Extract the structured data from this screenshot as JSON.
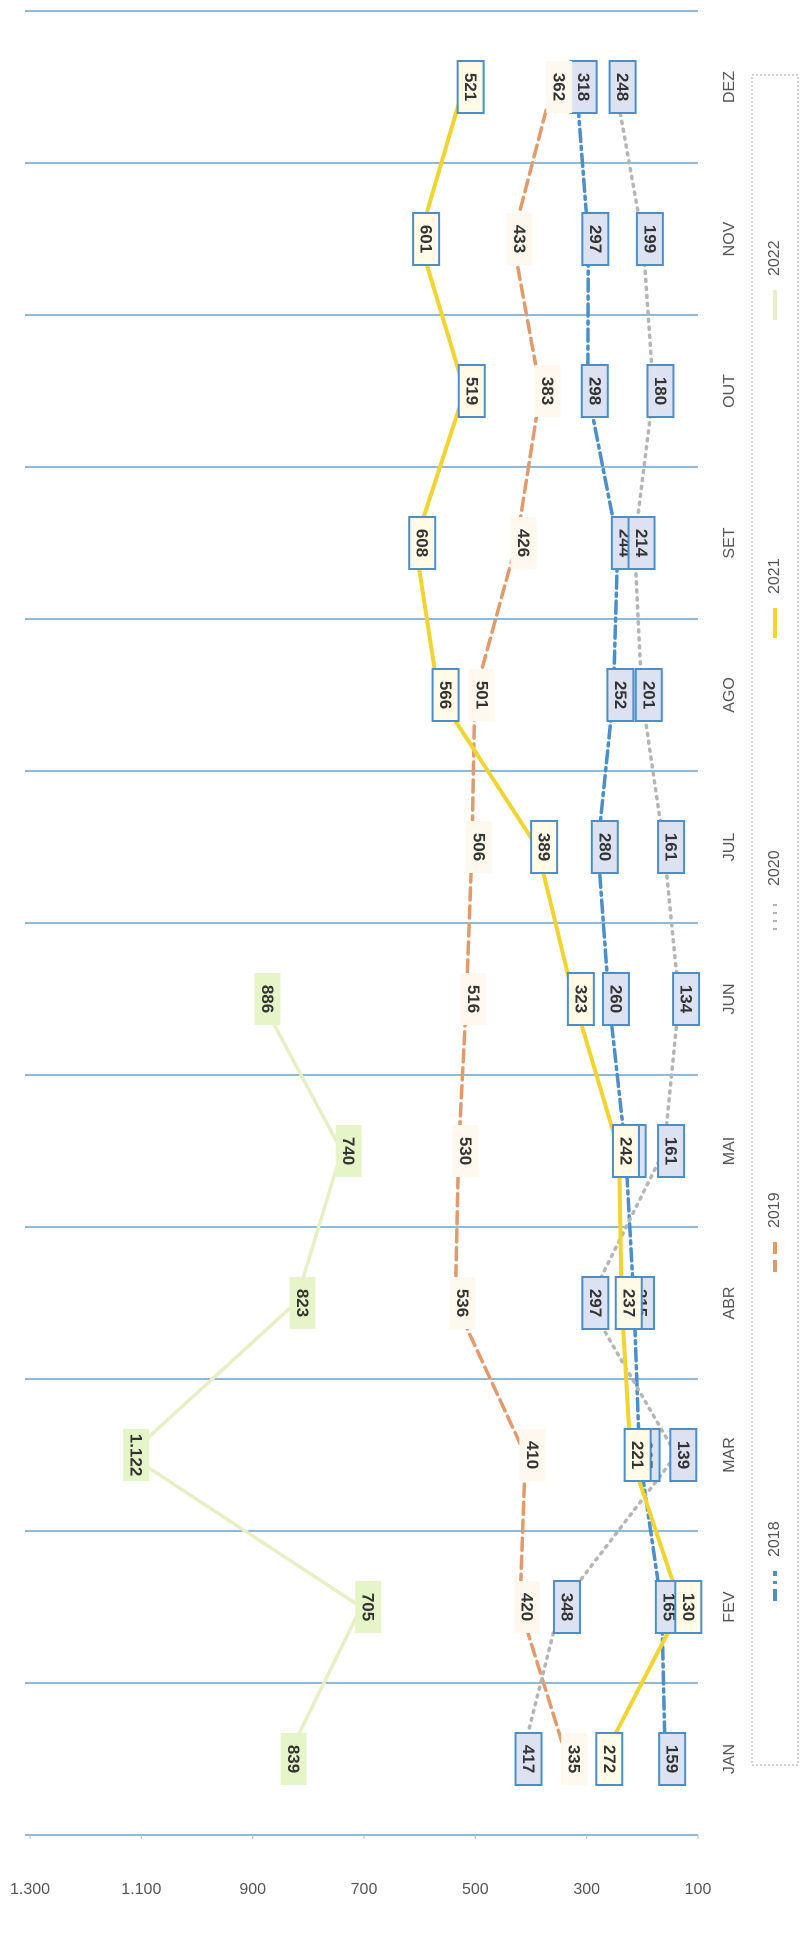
{
  "chart_data": {
    "type": "line",
    "categories": [
      "JAN",
      "FEV",
      "MAR",
      "ABR",
      "MAI",
      "JUN",
      "JUL",
      "AGO",
      "SET",
      "OUT",
      "NOV",
      "DEZ"
    ],
    "series": [
      {
        "name": "2018",
        "color": "#4a8fc9",
        "dash": "12 5 3 5",
        "values": [
          159,
          165,
          205,
          215,
          230,
          260,
          280,
          252,
          244,
          298,
          297,
          318
        ]
      },
      {
        "name": "2019",
        "color": "#e39a6a",
        "dash": "12 6",
        "values": [
          335,
          420,
          410,
          536,
          530,
          516,
          506,
          501,
          426,
          383,
          433,
          362
        ]
      },
      {
        "name": "2020",
        "color": "#b5b5b5",
        "dash": "2 6",
        "values": [
          417,
          348,
          139,
          297,
          161,
          134,
          161,
          201,
          214,
          180,
          199,
          248
        ]
      },
      {
        "name": "2021",
        "color": "#f2d431",
        "dash": "",
        "values": [
          272,
          130,
          221,
          237,
          242,
          323,
          389,
          566,
          608,
          519,
          601,
          521
        ]
      },
      {
        "name": "2022",
        "color": "#e6f0c4",
        "dash": "",
        "values": [
          839,
          705,
          1122,
          823,
          740,
          886,
          null,
          null,
          null,
          null,
          null,
          null
        ],
        "value_labels": [
          "839",
          "705",
          "1.122",
          "823",
          "740",
          "886",
          null,
          null,
          null,
          null,
          null,
          null
        ]
      }
    ],
    "ylim": [
      100,
      1300
    ],
    "yticks": [
      100,
      300,
      500,
      700,
      900,
      {
        "value": 1100,
        "label": "1.100"
      },
      {
        "value": 1300,
        "label": "1.300"
      }
    ],
    "grid": true,
    "legend": "right"
  }
}
